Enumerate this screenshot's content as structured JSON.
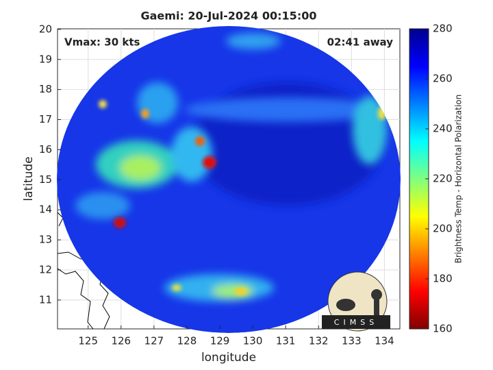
{
  "title": "Gaemi: 20-Jul-2024 00:15:00",
  "annotations": {
    "left": "Vmax: 30 kts",
    "right": "02:41 away"
  },
  "map": {
    "xlabel": "longitude",
    "ylabel": "latitude",
    "xlim": [
      124.07,
      134.47
    ],
    "xticks": [
      125,
      126,
      127,
      128,
      129,
      130,
      131,
      132,
      133,
      134
    ],
    "ylim": [
      10.04,
      20.02
    ],
    "yticks": [
      11,
      12,
      13,
      14,
      15,
      16,
      17,
      18,
      19,
      20
    ],
    "grid": true
  },
  "colorbar": {
    "label": "Brightness Temp - Horizontal Polarization",
    "lim": [
      160,
      280
    ],
    "ticks": [
      160,
      180,
      200,
      220,
      240,
      260,
      280
    ]
  },
  "logo": "CIMSS"
}
